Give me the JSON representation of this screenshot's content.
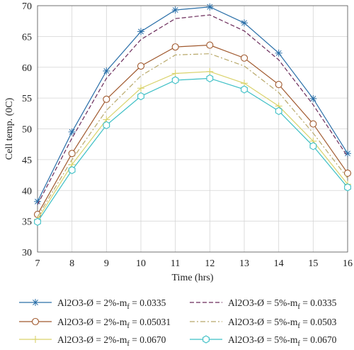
{
  "chart_data": {
    "type": "line",
    "xlabel": "Time (hrs)",
    "ylabel": "Cell temp. (0C)",
    "xlim": [
      7,
      16
    ],
    "ylim": [
      30,
      70
    ],
    "x": [
      7,
      8,
      9,
      10,
      11,
      12,
      13,
      14,
      15,
      16
    ],
    "x_ticks": [
      "7",
      "8",
      "9",
      "10",
      "11",
      "12",
      "13",
      "14",
      "15",
      "16"
    ],
    "y_ticks": [
      "30",
      "35",
      "40",
      "45",
      "50",
      "55",
      "60",
      "65",
      "70"
    ],
    "grid": true,
    "legend_position": "bottom",
    "series": [
      {
        "name": "Al2O3-Ø = 2%-m",
        "sub": "f",
        "suffix": " = 0.0335",
        "color": "#2a6fa8",
        "dash": "solid",
        "marker": "star",
        "values": [
          38.2,
          49.5,
          59.4,
          65.8,
          69.3,
          69.8,
          67.2,
          62.3,
          54.9,
          46.0
        ]
      },
      {
        "name": "Al2O3-Ø = 5%-m",
        "sub": "f",
        "suffix": " = 0.0335",
        "color": "#6b2b5a",
        "dash": "dashed",
        "marker": "none",
        "values": [
          37.7,
          48.5,
          58.2,
          64.5,
          67.9,
          68.5,
          65.9,
          61.2,
          53.9,
          45.5
        ]
      },
      {
        "name": "Al2O3-Ø = 2%-m",
        "sub": "f",
        "suffix": " = 0.05031",
        "color": "#a0592e",
        "dash": "solid",
        "marker": "circle",
        "values": [
          36.1,
          46.0,
          54.8,
          60.2,
          63.3,
          63.6,
          61.5,
          57.2,
          50.8,
          42.8
        ]
      },
      {
        "name": "Al2O3-Ø = 5%-m",
        "sub": "f",
        "suffix": " = 0.0503",
        "color": "#b8a86a",
        "dash": "dashdot",
        "marker": "none",
        "values": [
          35.7,
          45.0,
          53.0,
          58.6,
          62.0,
          62.2,
          60.2,
          55.9,
          49.3,
          42.0
        ]
      },
      {
        "name": "Al2O3-Ø = 2%-m",
        "sub": "f",
        "suffix": " = 0.0670",
        "color": "#d9d26a",
        "dash": "solid",
        "marker": "plus",
        "values": [
          35.3,
          44.2,
          51.5,
          56.6,
          59.0,
          59.3,
          57.4,
          53.7,
          48.0,
          41.0
        ]
      },
      {
        "name": "Al2O3-Ø = 5%-m",
        "sub": "f",
        "suffix": " = 0.0670",
        "color": "#3cbfc5",
        "dash": "solid",
        "marker": "hexagon",
        "values": [
          34.9,
          43.3,
          50.6,
          55.3,
          57.9,
          58.2,
          56.4,
          52.9,
          47.2,
          40.5
        ]
      }
    ]
  }
}
